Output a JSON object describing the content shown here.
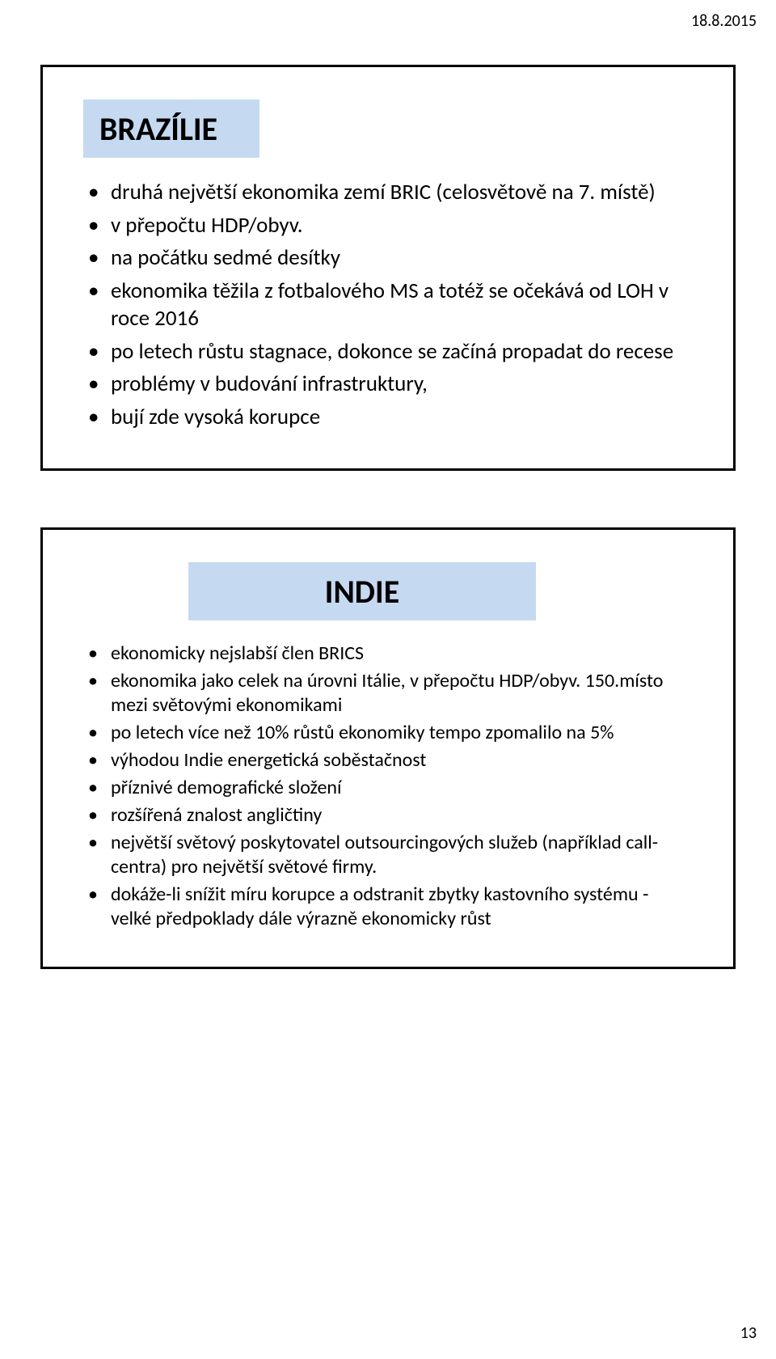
{
  "header": {
    "date": "18.8.2015"
  },
  "footer": {
    "page_number": "13"
  },
  "colors": {
    "title_bg": "#c5d9f1",
    "border": "#000000",
    "text": "#000000",
    "page_bg": "#ffffff"
  },
  "typography": {
    "title_fontsize_pt": 30,
    "body_fontsize_pt": 20,
    "body2_fontsize_pt": 18,
    "date_fontsize_pt": 15,
    "font_family": "Calibri"
  },
  "slide1": {
    "title": "BRAZÍLIE",
    "bullets": [
      "druhá největší ekonomika zemí BRIC (celosvětově na 7. místě)",
      "v přepočtu HDP/obyv.",
      "na počátku sedmé desítky",
      "ekonomika těžila z fotbalového MS a totéž se očekává od LOH v roce 2016",
      "po letech růstu stagnace, dokonce se začíná propadat do recese",
      "problémy v budování infrastruktury,",
      "bují zde vysoká korupce"
    ]
  },
  "slide2": {
    "title": "INDIE",
    "bullets": [
      "ekonomicky nejslabší člen BRICS",
      "ekonomika jako celek na úrovni Itálie, v přepočtu HDP/obyv. 150.místo mezi světovými ekonomikami",
      "po letech více než 10% růstů ekonomiky tempo zpomalilo na 5%",
      "výhodou Indie energetická soběstačnost",
      "příznivé demografické složení",
      "rozšířená znalost angličtiny",
      "největší světový poskytovatel outsourcingových služeb (například call-centra) pro největší světové firmy.",
      "dokáže-li snížit míru korupce a odstranit zbytky kastovního systému - velké předpoklady dále výrazně ekonomicky růst"
    ]
  }
}
